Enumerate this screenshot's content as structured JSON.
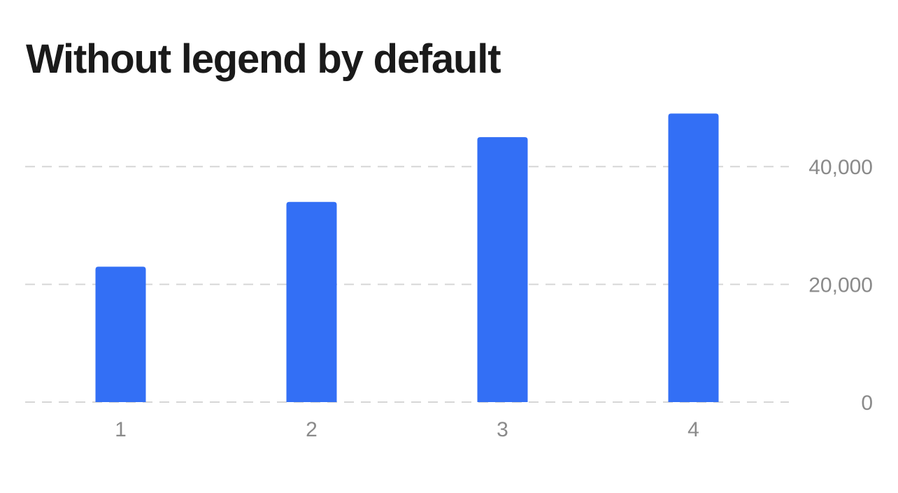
{
  "chart_data": {
    "type": "bar",
    "title": "Without legend by default",
    "categories": [
      "1",
      "2",
      "3",
      "4"
    ],
    "values": [
      23000,
      34000,
      45000,
      49000
    ],
    "ylim": [
      0,
      50000
    ],
    "yticks": [
      0,
      20000,
      40000
    ],
    "ytick_labels": [
      "0",
      "20,000",
      "40,000"
    ],
    "y_axis_side": "right",
    "grid": true,
    "legend": false,
    "bar_color": "#336ff5",
    "grid_color": "#d6d6d6",
    "tick_color": "#8a8a8a",
    "title_color": "#1a1a1a"
  }
}
